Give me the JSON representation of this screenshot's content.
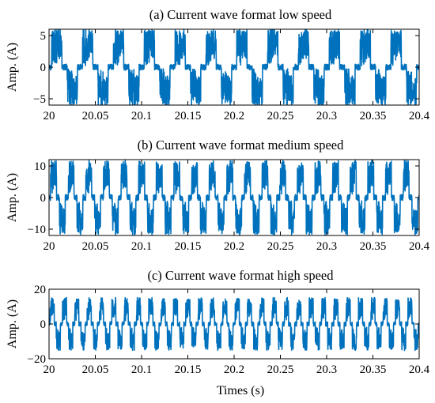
{
  "chart_data": [
    {
      "type": "line",
      "title": "(a) Current wave format low speed",
      "ylabel": "Amp. (A)",
      "xlabel": "",
      "xlim": [
        20,
        20.4
      ],
      "ylim": [
        -6,
        6
      ],
      "xticks": [
        20,
        20.05,
        20.1,
        20.15,
        20.2,
        20.25,
        20.3,
        20.35,
        20.4
      ],
      "xtick_labels": [
        "20",
        "20.05",
        "20.1",
        "20.15",
        "20.2",
        "20.25",
        "20.3",
        "20.35",
        "20.4"
      ],
      "yticks": [
        -5,
        0,
        5
      ],
      "ytick_labels": [
        "−5",
        "0",
        "5"
      ],
      "grid": false,
      "color": "#0072BD",
      "series": [
        {
          "waveform": "six-step square wave with switching ripple",
          "amplitude_peak": 6.2,
          "plateau_level": 3.7,
          "period_s": 0.03333
        }
      ]
    },
    {
      "type": "line",
      "title": "(b) Current wave format medium speed",
      "ylabel": "Amp. (A)",
      "xlabel": "",
      "xlim": [
        20,
        20.4
      ],
      "ylim": [
        -12,
        12
      ],
      "xticks": [
        20,
        20.05,
        20.1,
        20.15,
        20.2,
        20.25,
        20.3,
        20.35,
        20.4
      ],
      "xtick_labels": [
        "20",
        "20.05",
        "20.1",
        "20.15",
        "20.2",
        "20.25",
        "20.3",
        "20.35",
        "20.4"
      ],
      "yticks": [
        -10,
        0,
        10
      ],
      "ytick_labels": [
        "−10",
        "0",
        "10"
      ],
      "grid": false,
      "color": "#0072BD",
      "series": [
        {
          "waveform": "six-step square wave with switching ripple",
          "amplitude_peak": 12,
          "plateau_level": 7.5,
          "period_s": 0.01905
        }
      ]
    },
    {
      "type": "line",
      "title": "(c) Current wave format high speed",
      "ylabel": "Amp. (A)",
      "xlabel": "Times (s)",
      "xlim": [
        20,
        20.4
      ],
      "ylim": [
        -20,
        20
      ],
      "xticks": [
        20,
        20.05,
        20.1,
        20.15,
        20.2,
        20.25,
        20.3,
        20.35,
        20.4
      ],
      "xtick_labels": [
        "20",
        "20.05",
        "20.1",
        "20.15",
        "20.2",
        "20.25",
        "20.3",
        "20.35",
        "20.4"
      ],
      "yticks": [
        -20,
        0,
        20
      ],
      "ytick_labels": [
        "−20",
        "0",
        "20"
      ],
      "grid": false,
      "color": "#0072BD",
      "series": [
        {
          "waveform": "six-step square wave with switching ripple",
          "amplitude_peak": 15.5,
          "plateau_level": 10,
          "period_s": 0.01333
        }
      ]
    }
  ]
}
